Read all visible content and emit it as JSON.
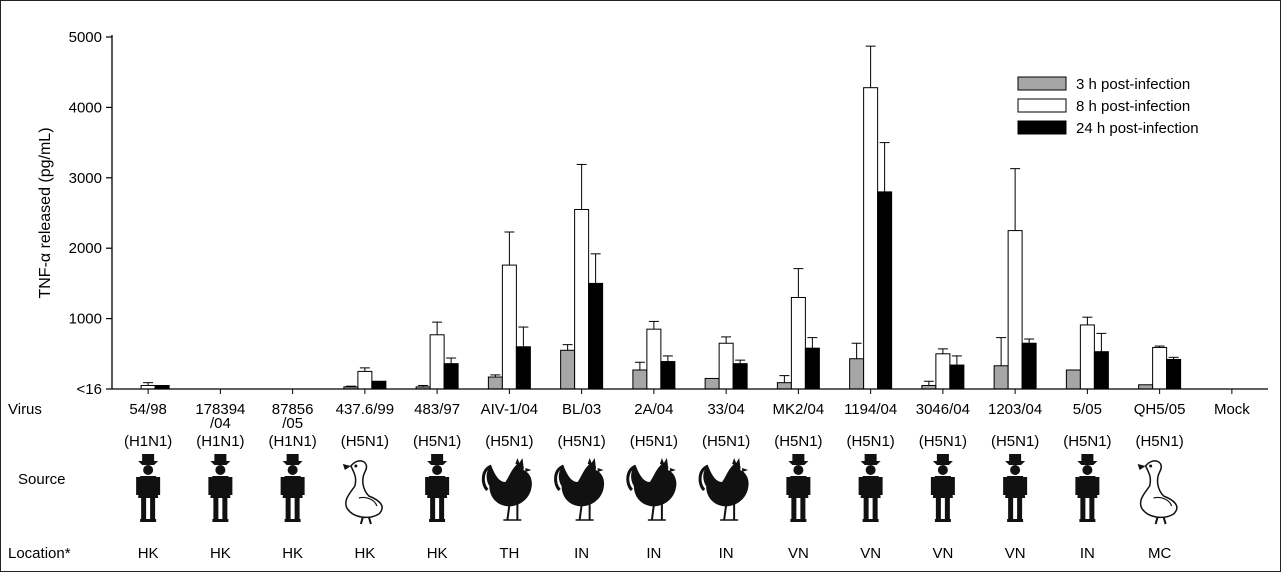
{
  "chart_data": {
    "type": "bar",
    "ylabel": "TNF-α released (pg/mL)",
    "y_ticks": [
      "<16",
      "1000",
      "2000",
      "3000",
      "4000",
      "5000"
    ],
    "ylim": [
      0,
      5000
    ],
    "legend_position": "top-right",
    "row_labels": {
      "virus": "Virus",
      "source": "Source",
      "location": "Location*"
    },
    "categories": [
      "54/98",
      "178394/04",
      "87856/05",
      "437.6/99",
      "483/97",
      "AIV-1/04",
      "BL/03",
      "2A/04",
      "33/04",
      "MK2/04",
      "1194/04",
      "3046/04",
      "1203/04",
      "5/05",
      "QH5/05",
      "Mock"
    ],
    "category_lines": [
      [
        "54/98"
      ],
      [
        "178394",
        "/04"
      ],
      [
        "87856",
        "/05"
      ],
      [
        "437.6/99"
      ],
      [
        "483/97"
      ],
      [
        "AIV-1/04"
      ],
      [
        "BL/03"
      ],
      [
        "2A/04"
      ],
      [
        "33/04"
      ],
      [
        "MK2/04"
      ],
      [
        "1194/04"
      ],
      [
        "3046/04"
      ],
      [
        "1203/04"
      ],
      [
        "5/05"
      ],
      [
        "QH5/05"
      ],
      [
        "Mock"
      ]
    ],
    "subtypes": [
      "(H1N1)",
      "(H1N1)",
      "(H1N1)",
      "(H5N1)",
      "(H5N1)",
      "(H5N1)",
      "(H5N1)",
      "(H5N1)",
      "(H5N1)",
      "(H5N1)",
      "(H5N1)",
      "(H5N1)",
      "(H5N1)",
      "(H5N1)",
      "(H5N1)",
      ""
    ],
    "sources": [
      "human",
      "human",
      "human",
      "duck",
      "human",
      "chicken",
      "chicken",
      "chicken",
      "chicken",
      "human",
      "human",
      "human",
      "human",
      "human",
      "duck",
      ""
    ],
    "locations": [
      "HK",
      "HK",
      "HK",
      "HK",
      "HK",
      "TH",
      "IN",
      "IN",
      "IN",
      "VN",
      "VN",
      "VN",
      "VN",
      "IN",
      "MC",
      ""
    ],
    "series": [
      {
        "name": "3 h post-infection",
        "color": "#a6a6a6",
        "values": [
          0,
          0,
          0,
          30,
          30,
          170,
          550,
          270,
          150,
          90,
          430,
          50,
          330,
          270,
          60,
          0
        ],
        "errors": [
          0,
          0,
          0,
          10,
          20,
          30,
          80,
          110,
          0,
          100,
          220,
          60,
          400,
          0,
          0,
          0
        ]
      },
      {
        "name": "8 h post-infection",
        "color": "#ffffff",
        "values": [
          50,
          0,
          0,
          250,
          770,
          1760,
          2550,
          850,
          650,
          1300,
          4280,
          500,
          2250,
          910,
          590,
          0
        ],
        "errors": [
          40,
          0,
          0,
          50,
          180,
          470,
          640,
          110,
          90,
          410,
          590,
          70,
          880,
          110,
          20,
          0
        ]
      },
      {
        "name": "24 h post-infection",
        "color": "#000000",
        "values": [
          50,
          0,
          0,
          110,
          360,
          600,
          1500,
          390,
          360,
          580,
          2800,
          340,
          650,
          530,
          420,
          0
        ],
        "errors": [
          0,
          0,
          0,
          0,
          80,
          280,
          420,
          80,
          50,
          150,
          700,
          130,
          60,
          260,
          30,
          0
        ]
      }
    ]
  }
}
